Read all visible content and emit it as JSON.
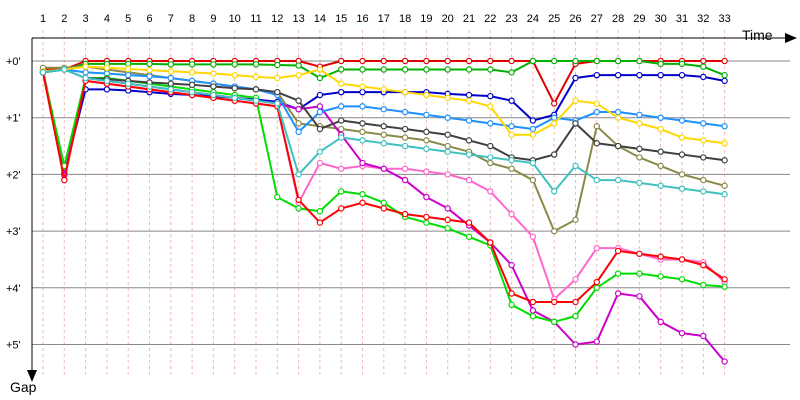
{
  "chart_data": {
    "type": "line",
    "title": "",
    "xlabel": "Time",
    "ylabel": "Gap",
    "x_ticks": [
      "1",
      "2",
      "3",
      "4",
      "5",
      "6",
      "7",
      "8",
      "9",
      "10",
      "11",
      "12",
      "13",
      "14",
      "15",
      "16",
      "17",
      "18",
      "19",
      "20",
      "21",
      "22",
      "23",
      "24",
      "25",
      "26",
      "27",
      "28",
      "29",
      "30",
      "31",
      "32",
      "33"
    ],
    "y_ticks": [
      "+0'",
      "+1'",
      "+2'",
      "+3'",
      "+4'",
      "+5'"
    ],
    "ylim": [
      0,
      5.5
    ],
    "y_inverted": true,
    "grid": true,
    "series": [
      {
        "color": "#e00000",
        "values": [
          0.15,
          0.15,
          0.0,
          0.0,
          0.0,
          0.0,
          0.0,
          0.0,
          0.0,
          0.0,
          0.0,
          0.0,
          0.0,
          0.1,
          0.0,
          0.0,
          0.0,
          0.0,
          0.0,
          0.0,
          0.0,
          0.0,
          0.0,
          0.0,
          0.75,
          0.05,
          0.0,
          0.0,
          0.0,
          0.0,
          0.0,
          0.0,
          0.0
        ]
      },
      {
        "color": "#0000c8",
        "values": [
          0.2,
          1.98,
          0.5,
          0.5,
          0.52,
          0.55,
          0.58,
          0.6,
          0.62,
          0.65,
          0.68,
          0.72,
          0.85,
          0.6,
          0.55,
          0.55,
          0.55,
          0.55,
          0.55,
          0.58,
          0.6,
          0.62,
          0.7,
          1.05,
          0.95,
          0.3,
          0.25,
          0.25,
          0.25,
          0.25,
          0.25,
          0.28,
          0.35
        ]
      },
      {
        "color": "#00b000",
        "values": [
          0.2,
          0.15,
          0.05,
          0.05,
          0.05,
          0.05,
          0.06,
          0.06,
          0.06,
          0.06,
          0.06,
          0.07,
          0.08,
          0.3,
          0.15,
          0.15,
          0.15,
          0.15,
          0.15,
          0.15,
          0.15,
          0.15,
          0.2,
          0.0,
          0.0,
          0.0,
          0.0,
          0.0,
          0.0,
          0.05,
          0.05,
          0.1,
          0.25
        ]
      },
      {
        "color": "#ff66cc",
        "values": [
          0.15,
          1.95,
          0.35,
          0.4,
          0.45,
          0.5,
          0.55,
          0.6,
          0.65,
          0.7,
          0.75,
          0.8,
          2.5,
          1.8,
          1.9,
          1.85,
          1.9,
          1.9,
          1.95,
          2.0,
          2.1,
          2.3,
          2.7,
          3.1,
          4.2,
          3.85,
          3.3,
          3.3,
          3.4,
          3.5,
          3.5,
          3.55,
          3.9
        ]
      },
      {
        "color": "#8a8a4a",
        "values": [
          0.12,
          0.12,
          0.1,
          0.15,
          0.2,
          0.25,
          0.3,
          0.35,
          0.4,
          0.45,
          0.5,
          0.55,
          1.1,
          1.15,
          1.2,
          1.25,
          1.3,
          1.35,
          1.4,
          1.5,
          1.6,
          1.8,
          1.9,
          2.1,
          3.0,
          2.8,
          1.15,
          1.5,
          1.7,
          1.85,
          2.0,
          2.1,
          2.2
        ]
      },
      {
        "color": "#cc00cc",
        "values": [
          0.2,
          2.02,
          0.3,
          0.35,
          0.4,
          0.45,
          0.5,
          0.55,
          0.6,
          0.65,
          0.7,
          0.75,
          0.85,
          0.8,
          1.3,
          1.8,
          1.9,
          2.1,
          2.4,
          2.6,
          2.9,
          3.2,
          3.6,
          4.4,
          4.6,
          5.0,
          4.95,
          4.1,
          4.15,
          4.6,
          4.8,
          4.85,
          5.3
        ]
      },
      {
        "color": "#1e90ff",
        "values": [
          0.2,
          0.15,
          0.2,
          0.22,
          0.25,
          0.27,
          0.3,
          0.35,
          0.4,
          0.45,
          0.5,
          0.6,
          1.25,
          0.9,
          0.8,
          0.8,
          0.85,
          0.9,
          0.95,
          1.0,
          1.05,
          1.1,
          1.15,
          1.2,
          1.0,
          1.05,
          0.9,
          0.9,
          0.95,
          1.0,
          1.05,
          1.1,
          1.15
        ]
      },
      {
        "color": "#00dd00",
        "values": [
          0.2,
          1.85,
          0.3,
          0.3,
          0.35,
          0.4,
          0.45,
          0.5,
          0.55,
          0.6,
          0.65,
          2.4,
          2.6,
          2.65,
          2.3,
          2.35,
          2.5,
          2.75,
          2.85,
          2.95,
          3.1,
          3.25,
          4.3,
          4.5,
          4.6,
          4.5,
          4.0,
          3.75,
          3.75,
          3.8,
          3.85,
          3.95,
          3.98
        ]
      },
      {
        "color": "#ff0000",
        "values": [
          0.2,
          2.1,
          0.35,
          0.4,
          0.45,
          0.5,
          0.55,
          0.6,
          0.65,
          0.7,
          0.75,
          0.8,
          2.45,
          2.85,
          2.6,
          2.5,
          2.6,
          2.7,
          2.75,
          2.8,
          2.85,
          3.2,
          4.1,
          4.25,
          4.25,
          4.25,
          3.9,
          3.35,
          3.4,
          3.45,
          3.5,
          3.6,
          3.85
        ]
      },
      {
        "color": "#ffd700",
        "values": [
          0.18,
          0.15,
          0.1,
          0.12,
          0.14,
          0.16,
          0.18,
          0.2,
          0.22,
          0.25,
          0.28,
          0.3,
          0.25,
          0.15,
          0.4,
          0.45,
          0.5,
          0.55,
          0.6,
          0.65,
          0.7,
          0.8,
          1.3,
          1.3,
          1.1,
          0.7,
          0.75,
          1.0,
          1.1,
          1.2,
          1.35,
          1.4,
          1.45
        ]
      },
      {
        "color": "#404040",
        "values": [
          0.2,
          0.15,
          0.3,
          0.32,
          0.35,
          0.38,
          0.4,
          0.42,
          0.45,
          0.48,
          0.5,
          0.55,
          0.7,
          1.2,
          1.05,
          1.1,
          1.15,
          1.2,
          1.25,
          1.3,
          1.4,
          1.5,
          1.7,
          1.75,
          1.65,
          1.1,
          1.45,
          1.5,
          1.55,
          1.6,
          1.65,
          1.7,
          1.75
        ]
      },
      {
        "color": "#40c0c0",
        "values": [
          0.2,
          0.15,
          0.3,
          0.35,
          0.4,
          0.45,
          0.5,
          0.55,
          0.6,
          0.65,
          0.7,
          0.75,
          2.0,
          1.6,
          1.35,
          1.4,
          1.45,
          1.5,
          1.55,
          1.6,
          1.65,
          1.7,
          1.75,
          1.8,
          2.3,
          1.85,
          2.1,
          2.1,
          2.15,
          2.2,
          2.25,
          2.3,
          2.35
        ]
      }
    ]
  }
}
